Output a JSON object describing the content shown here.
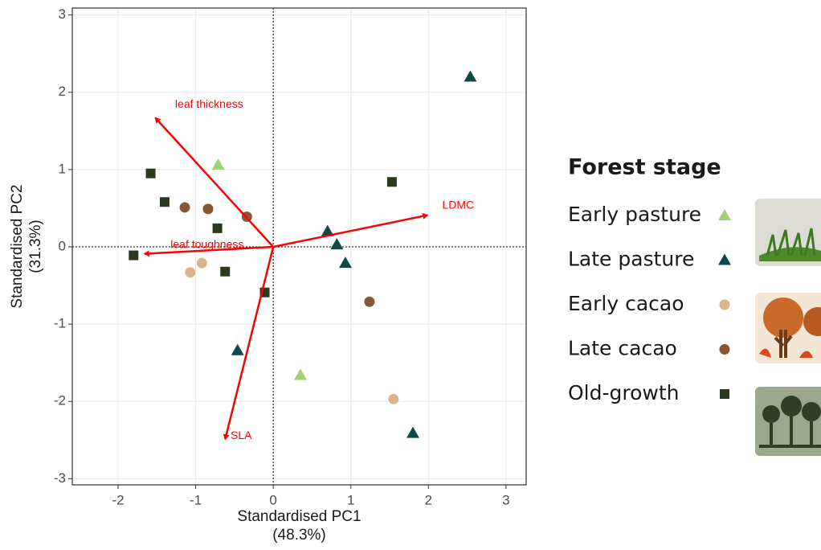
{
  "chart_data": {
    "type": "scatter",
    "x_label": [
      "Standardised PC1",
      "(48.3%)"
    ],
    "y_label": [
      "Standardised PC2",
      "(31.3%)"
    ],
    "xlim": [
      -2.59,
      3.26
    ],
    "ylim": [
      -3.08,
      3.09
    ],
    "xticks": [
      -2,
      -1,
      0,
      1,
      2,
      3
    ],
    "yticks": [
      -3,
      -2,
      -1,
      0,
      1,
      2,
      3
    ],
    "grid": true,
    "reference_lines": {
      "x": 0,
      "y": 0
    },
    "legend_title": "Forest stage",
    "series": [
      {
        "name": "Early pasture",
        "color": "#a3d177",
        "marker": "triangle",
        "x": [
          -0.71,
          0.35
        ],
        "y": [
          1.06,
          -1.66
        ]
      },
      {
        "name": "Late pasture",
        "color": "#0d4a47",
        "marker": "triangle",
        "x": [
          2.54,
          0.7,
          0.82,
          0.93,
          -0.46,
          1.8
        ],
        "y": [
          2.2,
          0.2,
          0.03,
          -0.21,
          -1.34,
          -2.41
        ]
      },
      {
        "name": "Early cacao",
        "color": "#dcb48a",
        "marker": "circle",
        "x": [
          -1.07,
          -0.92,
          1.55
        ],
        "y": [
          -0.33,
          -0.21,
          -1.97
        ]
      },
      {
        "name": "Late cacao",
        "color": "#8b5733",
        "marker": "circle",
        "x": [
          -1.14,
          -0.84,
          -0.34,
          1.24
        ],
        "y": [
          0.51,
          0.49,
          0.39,
          -0.71
        ]
      },
      {
        "name": "Old-growth",
        "color": "#2b3a1e",
        "marker": "square",
        "x": [
          -1.58,
          -1.4,
          -0.72,
          -1.8,
          -0.62,
          -0.11,
          1.53
        ],
        "y": [
          0.95,
          0.58,
          0.24,
          -0.11,
          -0.32,
          -0.59,
          0.84
        ]
      }
    ],
    "arrows": {
      "color": "#ff0000",
      "items": [
        {
          "label": "leaf thickness",
          "x": -1.52,
          "y": 1.67
        },
        {
          "label": "LDMC",
          "x": 1.99,
          "y": 0.41
        },
        {
          "label": "leaf toughness",
          "x": -1.66,
          "y": -0.09
        },
        {
          "label": "SLA",
          "x": -0.62,
          "y": -2.49
        }
      ]
    }
  }
}
